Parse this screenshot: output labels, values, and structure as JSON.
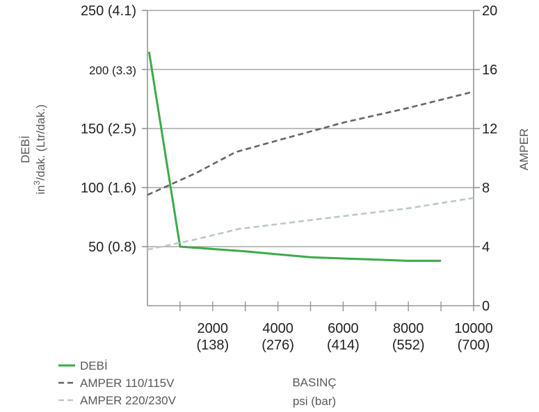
{
  "chart_data": {
    "type": "line",
    "title": "",
    "x": [
      0,
      1000,
      2000,
      3000,
      4000,
      5000,
      6000,
      7000,
      8000,
      9000,
      10000
    ],
    "x_ticks": [
      {
        "value": 2000,
        "line1": "2000",
        "line2": "(138)"
      },
      {
        "value": 4000,
        "line1": "4000",
        "line2": "(276)"
      },
      {
        "value": 6000,
        "line1": "6000",
        "line2": "(414)"
      },
      {
        "value": 8000,
        "line1": "8000",
        "line2": "(552)"
      },
      {
        "value": 10000,
        "line1": "10000",
        "line2": "(700)"
      }
    ],
    "xlim": [
      0,
      10000
    ],
    "xlabel": {
      "line1": "BASINÇ",
      "line2": "psi (bar)"
    },
    "y_left": {
      "label_line1": "DEBİ",
      "label_line2_pre": "in",
      "label_line2_sup": "3",
      "label_line2_post": "/dak.  (Ltr/dak.)",
      "lim": [
        0,
        250
      ],
      "ticks": [
        {
          "value": 50,
          "label": "50 (0.8)"
        },
        {
          "value": 100,
          "label": "100 (1.6)"
        },
        {
          "value": 150,
          "label": "150 (2.5)"
        },
        {
          "value": 200,
          "label": "200 (3.3)"
        },
        {
          "value": 250,
          "label": "250 (4.1)"
        }
      ]
    },
    "y_right": {
      "label": "AMPER",
      "lim": [
        0,
        20
      ],
      "ticks": [
        0,
        4,
        8,
        12,
        16,
        20
      ]
    },
    "grid": true,
    "legend_position": "bottom-left",
    "series": [
      {
        "name": "DEBİ",
        "axis": "left",
        "color": "#3aaa48",
        "dash": "solid",
        "points": [
          [
            50,
            215
          ],
          [
            1000,
            50
          ],
          [
            3000,
            46
          ],
          [
            5000,
            41
          ],
          [
            8000,
            38
          ],
          [
            9000,
            38
          ]
        ]
      },
      {
        "name": "AMPER 110/115V",
        "axis": "right",
        "color": "#636466",
        "dash": "dashed",
        "points": [
          [
            0,
            7.5
          ],
          [
            1500,
            9
          ],
          [
            2700,
            10.4
          ],
          [
            4000,
            11.2
          ],
          [
            6000,
            12.4
          ],
          [
            8000,
            13.4
          ],
          [
            10000,
            14.5
          ]
        ]
      },
      {
        "name": "AMPER 220/230V",
        "axis": "right",
        "color": "#b9c9ca",
        "dash": "dashed",
        "points": [
          [
            0,
            3.8
          ],
          [
            1500,
            4.5
          ],
          [
            2800,
            5.2
          ],
          [
            5000,
            5.8
          ],
          [
            8000,
            6.6
          ],
          [
            10000,
            7.3
          ]
        ]
      }
    ]
  }
}
